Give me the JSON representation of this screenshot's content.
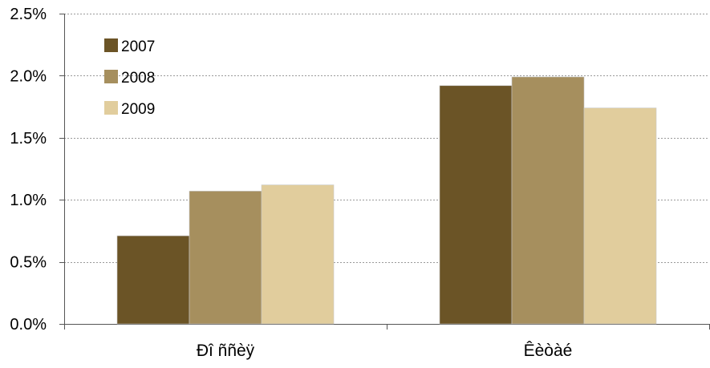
{
  "chart_data": {
    "type": "bar",
    "categories": [
      "Ðî ññèÿ",
      "Êèòàé"
    ],
    "series": [
      {
        "name": "2007",
        "values": [
          0.71,
          1.92
        ],
        "color": "#6b5426"
      },
      {
        "name": "2008",
        "values": [
          1.07,
          1.99
        ],
        "color": "#a68f5e"
      },
      {
        "name": "2009",
        "values": [
          1.12,
          1.74
        ],
        "color": "#e1cd9d"
      }
    ],
    "title": "",
    "xlabel": "",
    "ylabel": "",
    "ylim": [
      0,
      2.5
    ],
    "yticks": [
      0,
      0.5,
      1.0,
      1.5,
      2.0,
      2.5
    ],
    "ytick_labels": [
      "0.0%",
      "0.5%",
      "1.0%",
      "1.5%",
      "2.0%",
      "2.5%"
    ],
    "grid": true,
    "legend_position": "top-left"
  }
}
